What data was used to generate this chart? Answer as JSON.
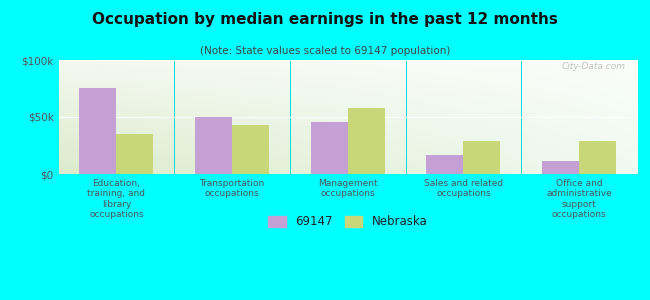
{
  "title": "Occupation by median earnings in the past 12 months",
  "subtitle": "(Note: State values scaled to 69147 population)",
  "background_color": "#00FFFF",
  "categories": [
    "Education,\ntraining, and\nlibrary\noccupations",
    "Transportation\noccupations",
    "Management\noccupations",
    "Sales and related\noccupations",
    "Office and\nadministrative\nsupport\noccupations"
  ],
  "values_69147": [
    75000,
    50000,
    46000,
    17000,
    11000
  ],
  "values_nebraska": [
    35000,
    43000,
    58000,
    29000,
    29000
  ],
  "color_69147": "#c4a0d4",
  "color_nebraska": "#c8d878",
  "ylim": [
    0,
    100000
  ],
  "yticks": [
    0,
    50000,
    100000
  ],
  "ytick_labels": [
    "$0",
    "$50k",
    "$100k"
  ],
  "bar_width": 0.32,
  "legend_label_69147": "69147",
  "legend_label_nebraska": "Nebraska",
  "watermark": "City-Data.com"
}
